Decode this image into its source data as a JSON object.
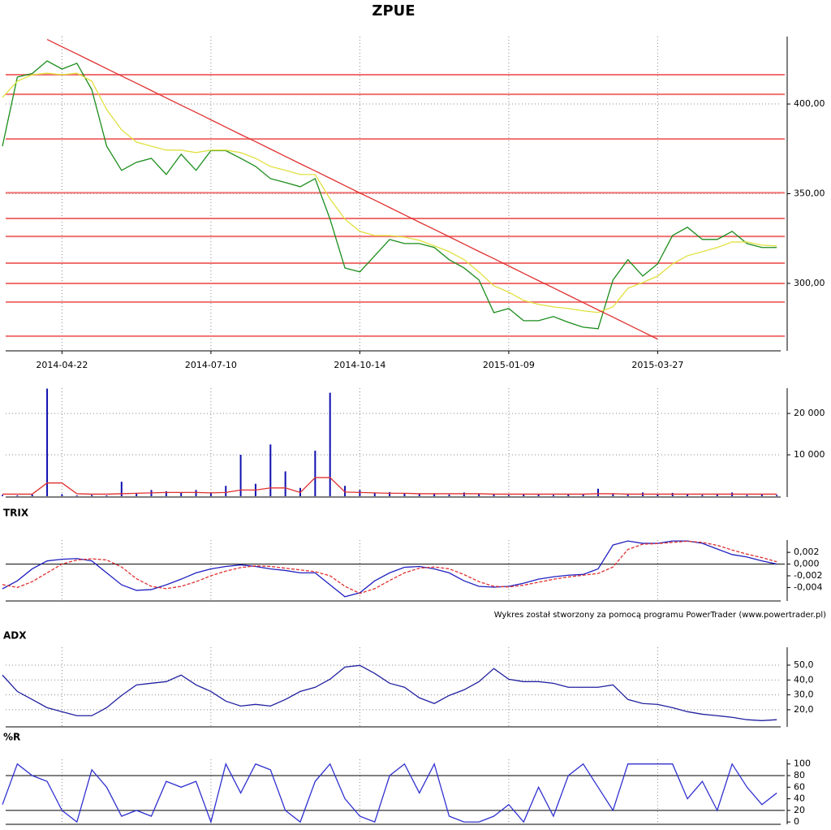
{
  "footer": "Wykres został stworzony za pomocą programu PowerTrader (www.powertrader.pl)",
  "chart_data": [
    {
      "type": "line",
      "title": "ZPUE",
      "categories": [
        null,
        null,
        null,
        null,
        "2014-04-22",
        null,
        null,
        null,
        null,
        null,
        null,
        null,
        null,
        null,
        "2014-07-10",
        null,
        null,
        null,
        null,
        null,
        null,
        null,
        null,
        null,
        "2014-10-14",
        null,
        null,
        null,
        null,
        null,
        null,
        null,
        null,
        null,
        "2015-01-09",
        null,
        null,
        null,
        null,
        null,
        null,
        null,
        null,
        null,
        "2015-03-27",
        null,
        null,
        null,
        null,
        null,
        null,
        null,
        null
      ],
      "series": [
        {
          "color": "#1a8c1a",
          "values": [
            376.5,
            415,
            417,
            424,
            419.5,
            422.7,
            408,
            376.5,
            363,
            367.5,
            369.7,
            360.7,
            372,
            363,
            374,
            374,
            369.7,
            365.2,
            358.4,
            356.2,
            353.9,
            358.4,
            335.8,
            308.6,
            306.4,
            315.4,
            324.5,
            322.2,
            322.2,
            320,
            313.2,
            308.6,
            301.9,
            283.7,
            286,
            279.2,
            279.2,
            281.5,
            278.3,
            275.6,
            274.7,
            301.9,
            313.2,
            304.1,
            310.9,
            326.7,
            331.3,
            324.5,
            324.5,
            329,
            322.2,
            320,
            320
          ]
        },
        {
          "color": "#e0e040",
          "values": [
            403.7,
            412.7,
            416.3,
            417.2,
            416.3,
            417.2,
            412.7,
            396.9,
            385.6,
            378.8,
            376.5,
            374.3,
            374.3,
            372.9,
            374.3,
            374.3,
            372.9,
            369.7,
            365.2,
            363,
            360.7,
            360.7,
            347.1,
            335.8,
            329,
            326.7,
            326.7,
            325.8,
            324,
            320.9,
            317.7,
            313.2,
            306.4,
            298.7,
            295.1,
            290.5,
            288.3,
            286.9,
            286,
            284.7,
            283.8,
            286.9,
            297.3,
            300.5,
            304.1,
            310.9,
            315.4,
            317.7,
            320,
            323.1,
            323.1,
            321.3,
            320.9
          ]
        },
        {
          "color": "#e03030",
          "values": [
            null,
            null,
            null,
            436.0,
            431.9,
            427.9,
            423.8,
            419.7,
            415.6,
            411.6,
            407.5,
            403.4,
            399.3,
            395.3,
            391.2,
            387.1,
            383.0,
            379.0,
            374.9,
            370.8,
            366.7,
            362.7,
            358.6,
            354.5,
            350.4,
            346.4,
            342.3,
            338.2,
            334.1,
            330.1,
            326.0,
            321.9,
            317.8,
            313.8,
            309.7,
            305.6,
            301.5,
            297.5,
            293.4,
            289.3,
            285.2,
            281.2,
            277.1,
            273.0,
            268.9,
            null,
            null,
            null,
            null,
            null,
            null,
            null,
            null
          ]
        }
      ],
      "levels": {
        "color": "#f07070",
        "values": [
          416.3,
          405.4,
          380.5,
          350.5,
          336.2,
          326.2,
          311.3,
          300,
          289.6,
          270.6
        ]
      },
      "ylim": [
        262.4,
        437.6
      ],
      "yticks": [
        {
          "value": 300,
          "label": "300,00"
        },
        {
          "value": 350,
          "label": "350,00"
        },
        {
          "value": 400,
          "label": "400,00"
        }
      ],
      "grid": true
    },
    {
      "type": "bar",
      "color": "#1010b0",
      "values": [
        300,
        200,
        400,
        26000,
        500,
        200,
        300,
        200,
        3500,
        800,
        1500,
        1200,
        800,
        1500,
        900,
        2500,
        10000,
        3000,
        12500,
        6000,
        2000,
        11000,
        25000,
        2500,
        1500,
        800,
        1000,
        600,
        500,
        700,
        400,
        900,
        500,
        600,
        300,
        400,
        500,
        300,
        400,
        500,
        1800,
        700,
        400,
        900,
        500,
        800,
        400,
        300,
        600,
        900,
        300,
        400,
        300
      ],
      "series": [
        {
          "color": "#e03030",
          "values": [
            500,
            500,
            500,
            3200,
            3200,
            600,
            500,
            500,
            600,
            700,
            800,
            900,
            900,
            900,
            800,
            900,
            1500,
            1500,
            2000,
            2000,
            900,
            4500,
            4500,
            1000,
            900,
            800,
            700,
            700,
            600,
            600,
            600,
            600,
            600,
            500,
            500,
            500,
            500,
            500,
            500,
            500,
            600,
            600,
            500,
            500,
            500,
            500,
            500,
            500,
            500,
            500,
            500,
            500,
            500
          ]
        }
      ],
      "ylim": [
        -200,
        26100
      ],
      "yticks": [
        {
          "value": 10000,
          "label": "10 000"
        },
        {
          "value": 20000,
          "label": "20 000"
        }
      ],
      "grid": true
    },
    {
      "type": "line",
      "title": "TRIX",
      "series": [
        {
          "color": "#2020c0",
          "values": [
            -0.00422,
            -0.00286,
            -0.00082,
            0.00054,
            0.00082,
            0.00095,
            0.00054,
            -0.0015,
            -0.00354,
            -0.00449,
            -0.00435,
            -0.00354,
            -0.00258,
            -0.0015,
            -0.00082,
            -0.00041,
            -0.00014,
            -0.00041,
            -0.00082,
            -0.00109,
            -0.0015,
            -0.0015,
            -0.00354,
            -0.00558,
            -0.0049,
            -0.00286,
            -0.0015,
            -0.00054,
            -0.00041,
            -0.00082,
            -0.0015,
            -0.00286,
            -0.00381,
            -0.00394,
            -0.00381,
            -0.00326,
            -0.00258,
            -0.00218,
            -0.0019,
            -0.00177,
            -0.00082,
            0.00326,
            0.00394,
            0.00354,
            0.00354,
            0.00394,
            0.00394,
            0.00354,
            0.00258,
            0.00163,
            0.0012,
            0.00054,
            0
          ]
        },
        {
          "color": "#e03030",
          "dashed": true,
          "values": [
            -0.0035,
            -0.004,
            -0.003,
            -0.0015,
            0,
            0.0007,
            0.0009,
            0.0007,
            -0.0005,
            -0.0025,
            -0.0038,
            -0.0042,
            -0.0038,
            -0.003,
            -0.002,
            -0.0012,
            -0.0006,
            -0.0003,
            -0.0004,
            -0.0007,
            -0.001,
            -0.0013,
            -0.002,
            -0.0038,
            -0.005,
            -0.0042,
            -0.0028,
            -0.0015,
            -0.0007,
            -0.0005,
            -0.0008,
            -0.0018,
            -0.003,
            -0.0038,
            -0.0039,
            -0.0036,
            -0.0031,
            -0.0026,
            -0.0022,
            -0.0019,
            -0.0016,
            -0.0005,
            0.0025,
            0.0034,
            0.0035,
            0.0037,
            0.0039,
            0.0037,
            0.0032,
            0.0024,
            0.0017,
            0.0011,
            0.0004
          ]
        }
      ],
      "levels": {
        "color": "#000000",
        "values": [
          0
        ]
      },
      "ylim": [
        -0.0063,
        0.0041
      ],
      "yticks": [
        {
          "value": -0.004,
          "label": "-0,004"
        },
        {
          "value": -0.002,
          "label": "-0,002"
        },
        {
          "value": 0,
          "label": "0,000"
        },
        {
          "value": 0.002,
          "label": "0,002"
        }
      ],
      "grid": false
    },
    {
      "type": "line",
      "title": "ADX",
      "series": [
        {
          "color": "#2020a0",
          "values": [
            43.3,
            32.3,
            26.9,
            21.4,
            18.7,
            16,
            16,
            21.4,
            29.6,
            36.7,
            37.8,
            38.9,
            43.3,
            36.7,
            32.3,
            25.8,
            22.5,
            23.6,
            22.5,
            26.9,
            32.3,
            35.1,
            40.5,
            48.7,
            49.8,
            44.4,
            37.8,
            35.1,
            28,
            24.2,
            29.6,
            33.4,
            38.9,
            47.7,
            40.5,
            38.9,
            38.9,
            37.8,
            35.1,
            35.1,
            35.1,
            36.7,
            26.9,
            24.2,
            23.6,
            21.4,
            18.7,
            17,
            16,
            14.9,
            13.3,
            12.7,
            13.3
          ]
        }
      ],
      "ylim": [
        8.5,
        62
      ],
      "yticks": [
        {
          "value": 20,
          "label": "20,0"
        },
        {
          "value": 30,
          "label": "30,0"
        },
        {
          "value": 40,
          "label": "40,0"
        },
        {
          "value": 50,
          "label": "50,0"
        }
      ],
      "grid": true
    },
    {
      "type": "line",
      "title": "%R",
      "series": [
        {
          "color": "#3030d0",
          "values": [
            30,
            100,
            80,
            70,
            20,
            0,
            90,
            60,
            10,
            20,
            10,
            70,
            60,
            70,
            0,
            100,
            50,
            100,
            90,
            20,
            0,
            70,
            100,
            40,
            10,
            0,
            80,
            100,
            50,
            100,
            10,
            0,
            0,
            10,
            30,
            0,
            60,
            10,
            80,
            100,
            60,
            20,
            100,
            100,
            100,
            100,
            40,
            70,
            20,
            100,
            60,
            30,
            50
          ]
        }
      ],
      "levels": {
        "color": "#000000",
        "values": [
          80,
          20
        ]
      },
      "ylim": [
        -4,
        108
      ],
      "yticks": [
        0,
        20,
        40,
        60,
        80,
        100
      ],
      "grid": false
    }
  ]
}
